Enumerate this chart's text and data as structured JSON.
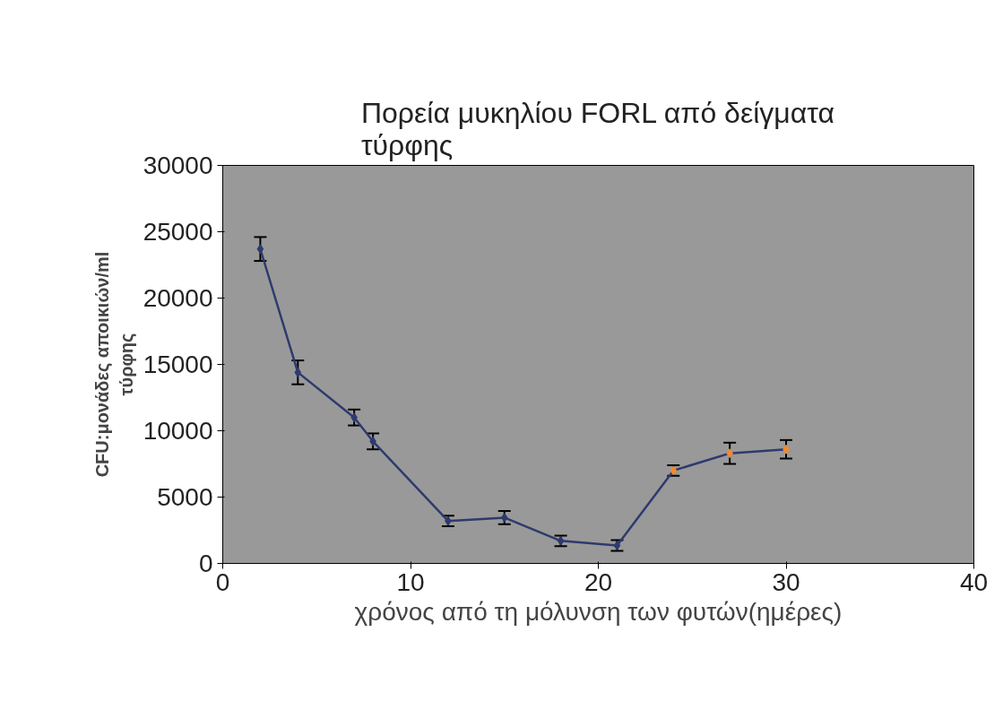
{
  "chart_data": {
    "type": "line",
    "title": "Πορεία μυκηλίου FORL από δείγματα τύρφης",
    "xlabel": "χρόνος από τη μόλυνση των φυτών(ημέρες)",
    "ylabel": "CFU:μονάδες αποικιών/ml τύρφης",
    "x": [
      2,
      4,
      7,
      8,
      12,
      15,
      18,
      21,
      24,
      27,
      30
    ],
    "series": [
      {
        "color": "#2e3a6e",
        "colors": [
          "#2e3a6e",
          "#2e3a6e",
          "#2e3a6e",
          "#2e3a6e",
          "#2e3a6e",
          "#2e3a6e",
          "#2e3a6e",
          "#2e3a6e",
          "#f08c30",
          "#f08c30",
          "#f08c30"
        ],
        "values": [
          23700,
          14400,
          11000,
          9200,
          3200,
          3450,
          1700,
          1350,
          7000,
          8300,
          8600
        ],
        "errors": [
          900,
          900,
          600,
          600,
          400,
          500,
          400,
          400,
          400,
          800,
          700
        ]
      }
    ],
    "xlim": [
      0,
      40
    ],
    "xticks": [
      0,
      10,
      20,
      30,
      40
    ],
    "ylim": [
      0,
      30000
    ],
    "yticks": [
      0,
      5000,
      10000,
      15000,
      20000,
      25000,
      30000
    ],
    "marker": "diamond",
    "line_style": "solid",
    "grid": false
  }
}
